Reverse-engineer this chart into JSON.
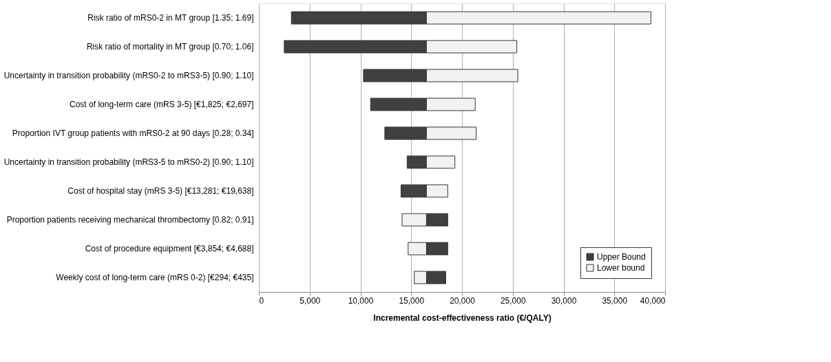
{
  "chart_data": {
    "type": "bar",
    "orientation": "horizontal",
    "xlabel": "Incremental cost-effectiveness ratio (€/QALY)",
    "categories": [
      "Risk ratio of mRS0-2 in MT group [1.35; 1.69]",
      "Risk ratio of mortality in MT group [0.70; 1.06]",
      "Uncertainty in transition probability (mRS0-2 to mRS3-5) [0.90; 1.10]",
      "Cost of long-term care (mRS 3-5) [€1,825; €2,697]",
      "Proportion IVT group patients with mRS0-2 at 90 days [0.28; 0.34]",
      "Uncertainty in transition probability (mRS3-5 to mRS0-2) [0.90; 1.10]",
      "Cost of hospital stay (mRS 3-5) [€13,281; €19,638]",
      "Proportion patients receiving mechanical thrombectomy [0.82; 0.91]",
      "Cost of procedure equipment [€3,854; €4,688]",
      "Weekly cost of long-term care (mRS 0-2) [€294; €435]"
    ],
    "series": [
      {
        "name": "Upper Bound",
        "color": "#404040",
        "base": [
          3200,
          2500,
          10300,
          11000,
          12400,
          14600,
          14000,
          16500,
          16500,
          16500
        ],
        "values": [
          13300,
          14000,
          6200,
          5500,
          4100,
          1900,
          2500,
          2100,
          2100,
          1900
        ]
      },
      {
        "name": "Lower bound",
        "color": "#f2f2f2",
        "base": [
          16500,
          16500,
          16500,
          16500,
          16500,
          16500,
          16500,
          14100,
          14700,
          15300
        ],
        "values": [
          22100,
          8900,
          9000,
          4800,
          4900,
          2800,
          2100,
          2400,
          1800,
          1200
        ]
      }
    ],
    "xlim": [
      0,
      40000
    ],
    "xticks": [
      0,
      {
        "value": 5000,
        "label": "5,000"
      },
      {
        "value": 10000,
        "label": "10,000"
      },
      {
        "value": 15000,
        "label": "15,000"
      },
      {
        "value": 20000,
        "label": "20,000"
      },
      {
        "value": 25000,
        "label": "25,000"
      },
      {
        "value": 30000,
        "label": "30,000"
      },
      {
        "value": 35000,
        "label": "35,000"
      },
      {
        "value": 40000,
        "label": "40,000"
      }
    ],
    "grid": "x",
    "legend": "bottom right"
  }
}
